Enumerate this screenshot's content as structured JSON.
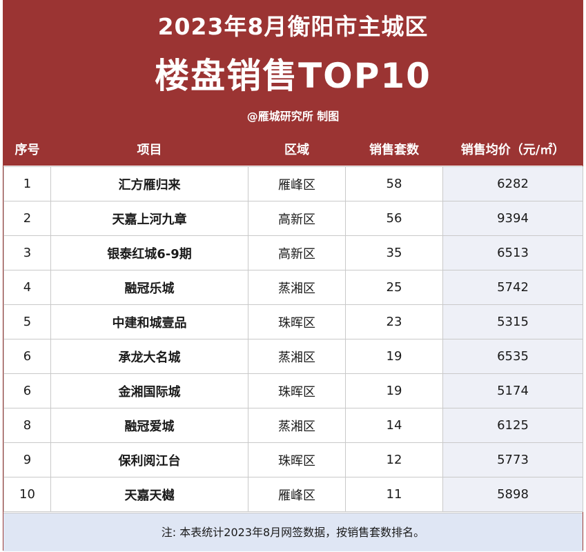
{
  "header": {
    "title_line1": "2023年8月衡阳市主城区",
    "title_line2": "楼盘销售TOP10",
    "credit": "@雁城研究所 制图"
  },
  "table": {
    "columns": [
      "序号",
      "项目",
      "区域",
      "销售套数",
      "销售均价（元/㎡）"
    ],
    "rows": [
      [
        "1",
        "汇方雁归来",
        "雁峰区",
        "58",
        "6282"
      ],
      [
        "2",
        "天嘉上河九章",
        "高新区",
        "56",
        "9394"
      ],
      [
        "3",
        "银泰红城6-9期",
        "高新区",
        "35",
        "6513"
      ],
      [
        "4",
        "融冠乐城",
        "蒸湘区",
        "25",
        "5742"
      ],
      [
        "5",
        "中建和城壹品",
        "珠晖区",
        "23",
        "5315"
      ],
      [
        "6",
        "承龙大名城",
        "蒸湘区",
        "19",
        "6535"
      ],
      [
        "6",
        "金湘国际城",
        "珠晖区",
        "19",
        "5174"
      ],
      [
        "8",
        "融冠爱城",
        "蒸湘区",
        "14",
        "6125"
      ],
      [
        "9",
        "保利阅江台",
        "珠晖区",
        "12",
        "5773"
      ],
      [
        "10",
        "天嘉天樾",
        "雁峰区",
        "11",
        "5898"
      ]
    ]
  },
  "footer": {
    "note": "注: 本表统计2023年8月网签数据，按销售套数排名。"
  },
  "colors": {
    "header_bg": "#9b3433",
    "footer_bg": "#dfe6f4"
  }
}
